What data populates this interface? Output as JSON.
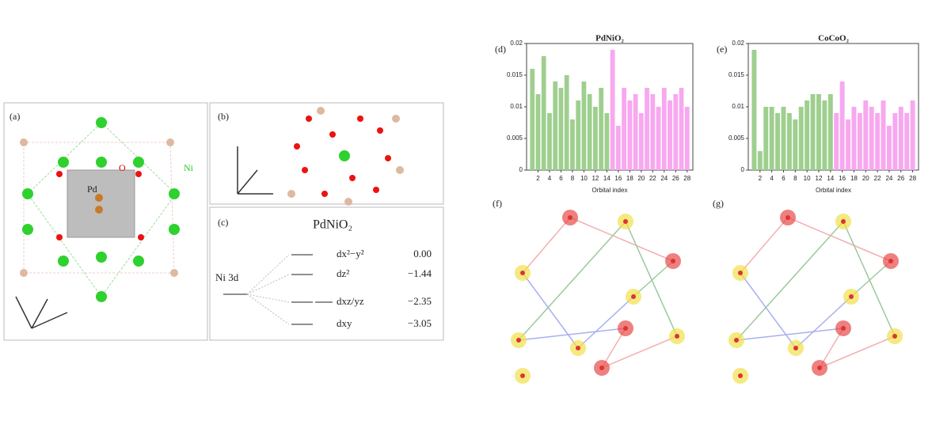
{
  "panel_a": {
    "label": "(a)",
    "atom_o": "O",
    "atom_ni": "Ni",
    "atom_pd": "Pd"
  },
  "panel_b": {
    "label": "(b)"
  },
  "panel_c": {
    "label": "(c)",
    "title": "PdNiO₂",
    "shell": "Ni 3d",
    "levels": [
      {
        "orbital": "dx²−y²",
        "energy": "0.00"
      },
      {
        "orbital": "dz²",
        "energy": "−1.44"
      },
      {
        "orbital": "dxz/yz",
        "energy": "−2.35"
      },
      {
        "orbital": "dxy",
        "energy": "−3.05"
      }
    ]
  },
  "panel_d": {
    "label": "(d)",
    "title": "PdNiO₂",
    "x_label": "Orbital index",
    "values": [
      0.016,
      0.012,
      0.018,
      0.009,
      0.014,
      0.013,
      0.015,
      0.008,
      0.011,
      0.014,
      0.012,
      0.01,
      0.013,
      0.009,
      0.019,
      0.007,
      0.013,
      0.011,
      0.012,
      0.009,
      0.013,
      0.012,
      0.01,
      0.013,
      0.011,
      0.012,
      0.013,
      0.01
    ],
    "ylim": [
      0,
      0.02
    ],
    "yticks": [
      0,
      0.005,
      0.01,
      0.015,
      0.02
    ],
    "xlim": [
      0,
      29
    ],
    "xticks": [
      2,
      4,
      6,
      8,
      10,
      12,
      14,
      16,
      18,
      20,
      22,
      24,
      26,
      28
    ],
    "colors": [
      "#9fcf8f",
      "#f7a8ef"
    ]
  },
  "panel_e": {
    "label": "(e)",
    "title": "CoCoO₂",
    "x_label": "Orbital index",
    "values": [
      0.019,
      0.003,
      0.01,
      0.01,
      0.009,
      0.01,
      0.009,
      0.008,
      0.01,
      0.011,
      0.012,
      0.012,
      0.011,
      0.012,
      0.009,
      0.014,
      0.008,
      0.01,
      0.009,
      0.011,
      0.01,
      0.009,
      0.011,
      0.007,
      0.009,
      0.01,
      0.009,
      0.011
    ],
    "ylim": [
      0,
      0.02
    ],
    "yticks": [
      0,
      0.005,
      0.01,
      0.015,
      0.02
    ],
    "xlim": [
      0,
      29
    ],
    "xticks": [
      2,
      4,
      6,
      8,
      10,
      12,
      14,
      16,
      18,
      20,
      22,
      24,
      26,
      28
    ],
    "colors": [
      "#9fcf8f",
      "#f7a8ef"
    ]
  },
  "panel_f": {
    "label": "(f)"
  },
  "panel_g": {
    "label": "(g)"
  }
}
